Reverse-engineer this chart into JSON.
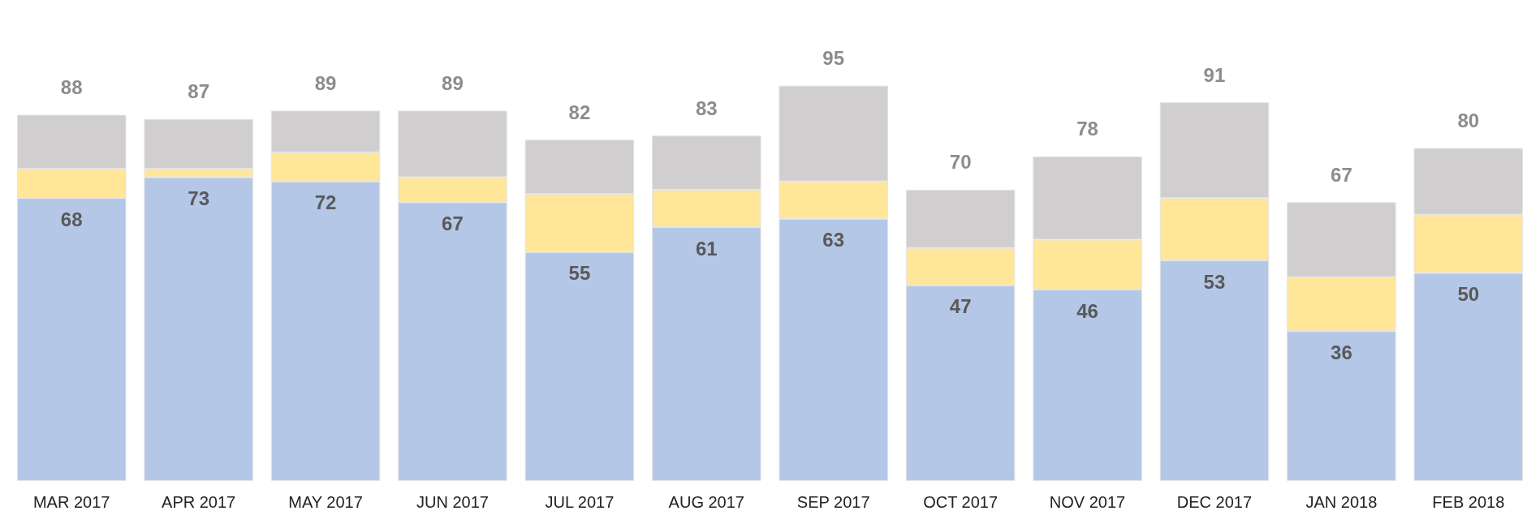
{
  "chart_data": {
    "type": "bar",
    "stacked": true,
    "categories": [
      "MAR 2017",
      "APR 2017",
      "MAY 2017",
      "JUN 2017",
      "JUL 2017",
      "AUG 2017",
      "SEP 2017",
      "OCT 2017",
      "NOV 2017",
      "DEC 2017",
      "JAN 2018",
      "FEB 2018"
    ],
    "series": [
      {
        "color": "#b4c7e7",
        "values": [
          68,
          73,
          72,
          67,
          55,
          61,
          63,
          47,
          46,
          53,
          36,
          50
        ],
        "value_labels": [
          "68",
          "73",
          "72",
          "67",
          "55",
          "61",
          "63",
          "47",
          "46",
          "53",
          "36",
          "50"
        ]
      },
      {
        "color": "#ffe699",
        "values": [
          7,
          2,
          7,
          6,
          14,
          9,
          9,
          9,
          12,
          15,
          13,
          14
        ]
      },
      {
        "color": "#d0cece",
        "values": [
          13,
          12,
          10,
          16,
          13,
          13,
          23,
          14,
          20,
          23,
          18,
          16
        ]
      }
    ],
    "totals": [
      "88",
      "87",
      "89",
      "89",
      "82",
      "83",
      "95",
      "70",
      "78",
      "91",
      "67",
      "80"
    ],
    "grid": false
  }
}
